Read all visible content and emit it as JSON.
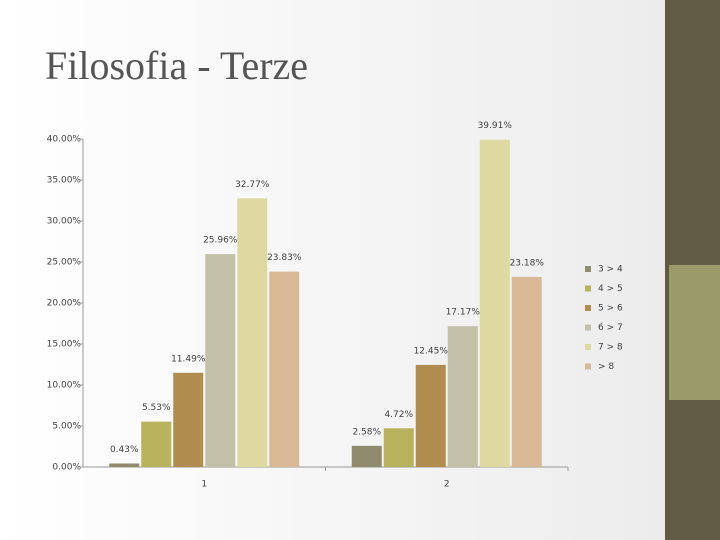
{
  "chart_data": {
    "type": "bar",
    "title": "Filosofia - Terze",
    "categories": [
      "1",
      "2"
    ],
    "series": [
      {
        "name": "3 > 4",
        "color": "#8f8b6c",
        "values": [
          0.43,
          2.58
        ],
        "value_labels": [
          "0.43%",
          "2.58%"
        ]
      },
      {
        "name": "4 > 5",
        "color": "#b8b25d",
        "values": [
          5.53,
          4.72
        ],
        "value_labels": [
          "5.53%",
          "4.72%"
        ]
      },
      {
        "name": "5 > 6",
        "color": "#b08c4f",
        "values": [
          11.49,
          12.45
        ],
        "value_labels": [
          "11.49%",
          "12.45%"
        ]
      },
      {
        "name": "6 > 7",
        "color": "#c2c1a8",
        "values": [
          25.96,
          17.17
        ],
        "value_labels": [
          "25.96%",
          "17.17%"
        ]
      },
      {
        "name": "7 > 8",
        "color": "#ded9a0",
        "values": [
          32.77,
          39.91
        ],
        "value_labels": [
          "32.77%",
          "39.91%"
        ]
      },
      {
        "name": "> 8",
        "color": "#d9b895",
        "values": [
          23.83,
          23.18
        ],
        "value_labels": [
          "23.83%",
          "23.18%"
        ]
      }
    ],
    "ylim": [
      0,
      40
    ],
    "yticks": [
      {
        "value": 0,
        "label": "0.00%"
      },
      {
        "value": 5,
        "label": "5.00%"
      },
      {
        "value": 10,
        "label": "10.00%"
      },
      {
        "value": 15,
        "label": "15.00%"
      },
      {
        "value": 20,
        "label": "20.00%"
      },
      {
        "value": 25,
        "label": "25.00%"
      },
      {
        "value": 30,
        "label": "30.00%"
      },
      {
        "value": 35,
        "label": "35.00%"
      },
      {
        "value": 40,
        "label": "40.00%"
      }
    ],
    "legend": "right"
  }
}
